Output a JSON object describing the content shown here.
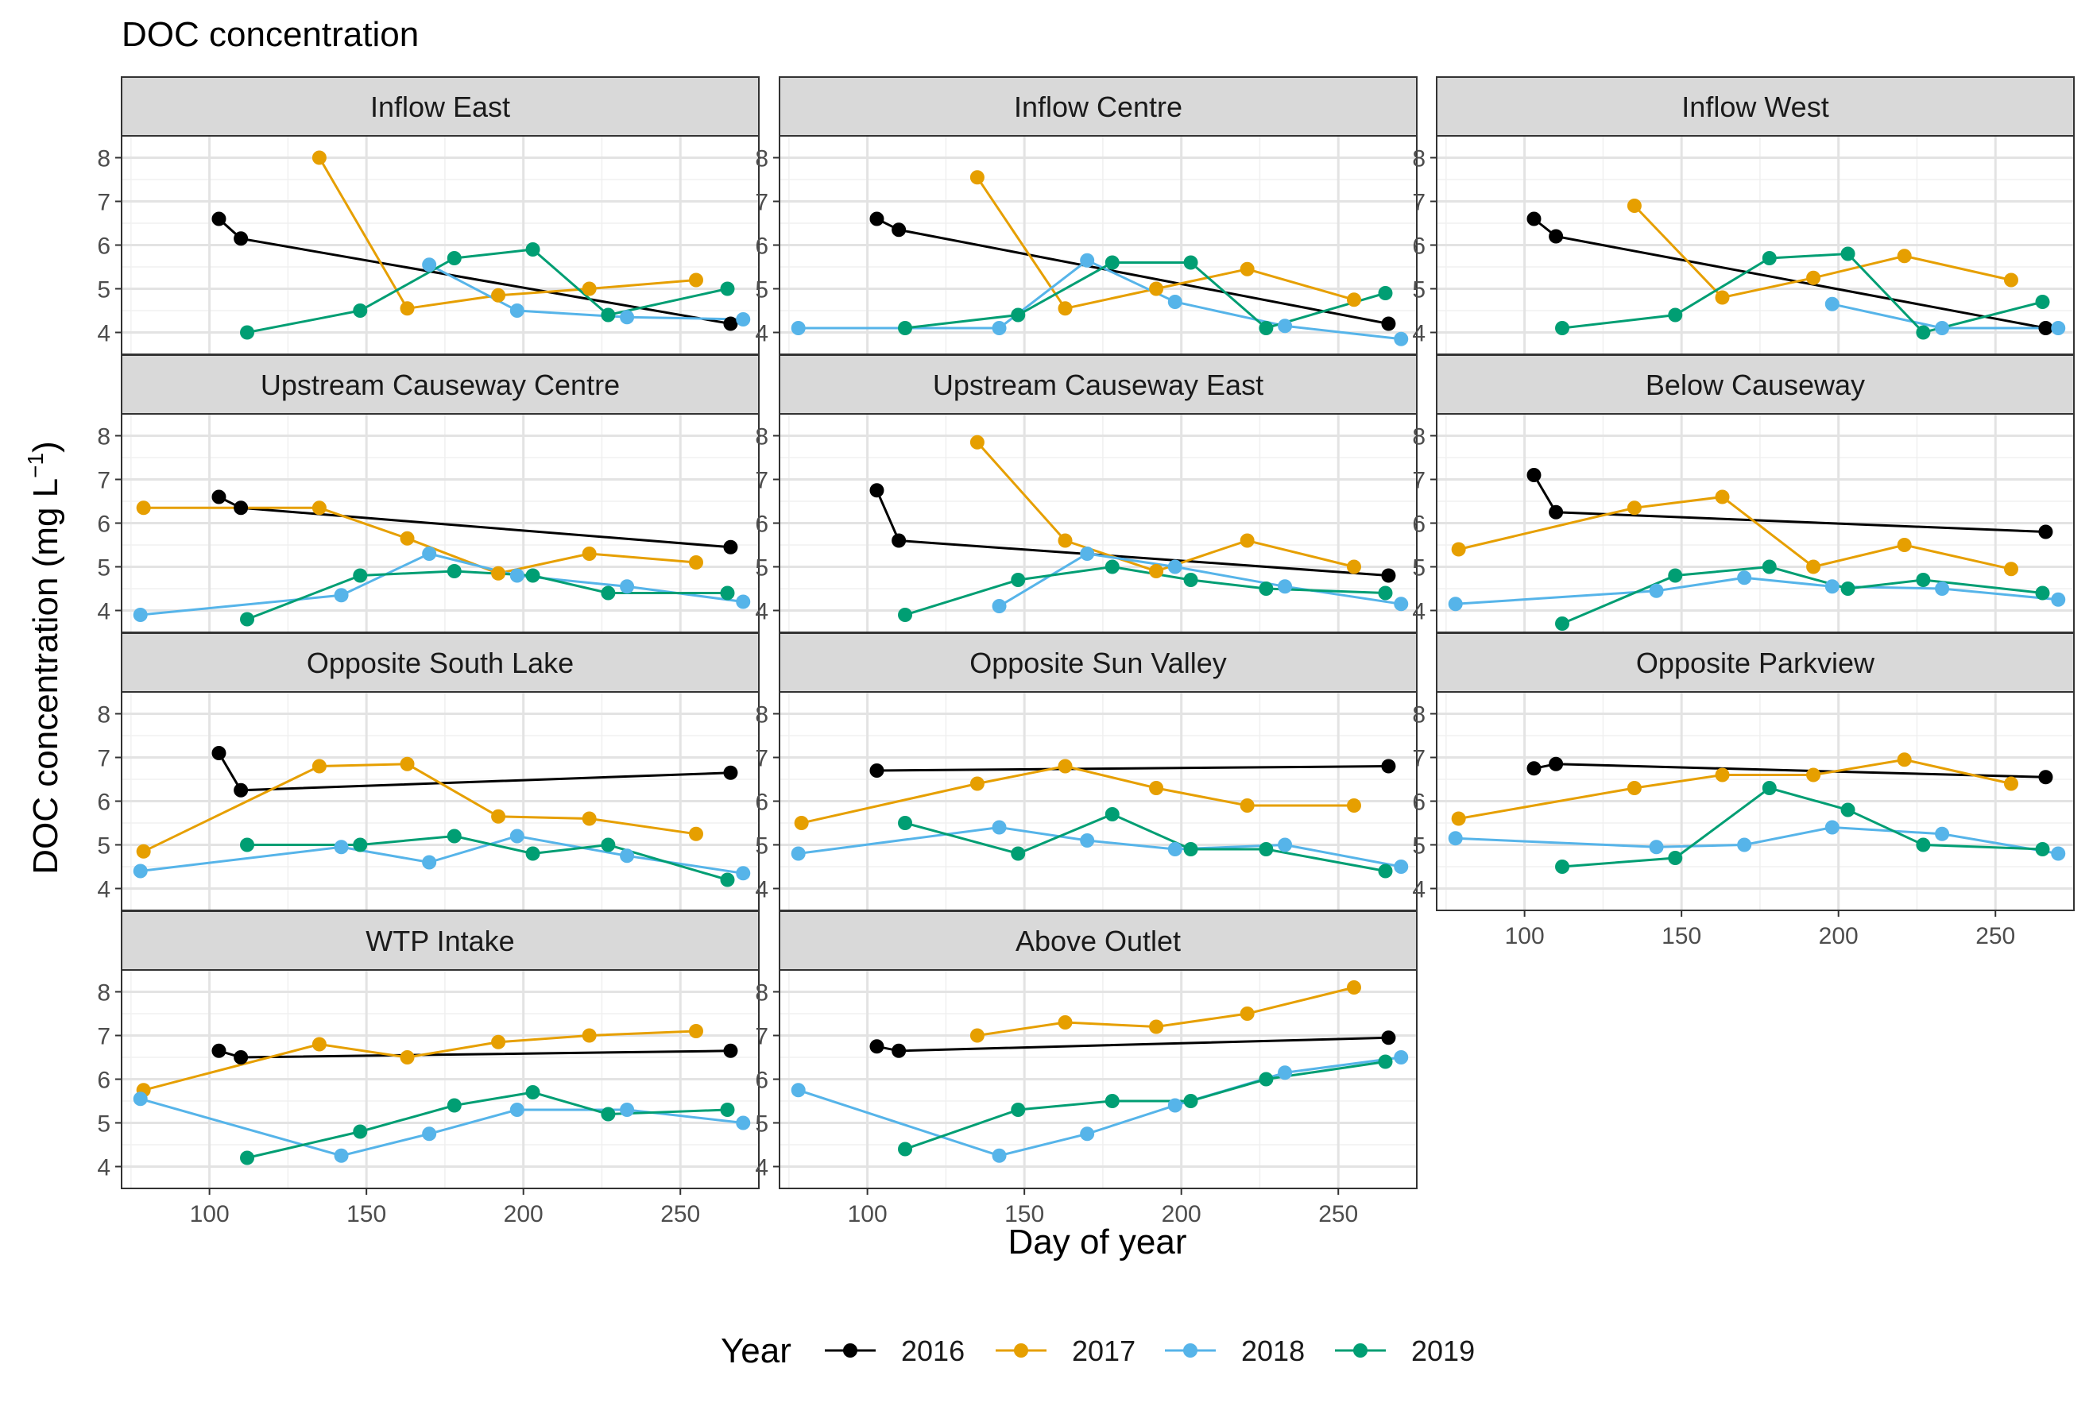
{
  "chart_data": {
    "type": "line",
    "title": "DOC concentration",
    "xlabel": "Day of year",
    "ylabel_main": "DOC concentration (mg L",
    "ylabel_sup": "−1",
    "ylabel_end": ")",
    "xlim": [
      72,
      275
    ],
    "ylim": [
      3.5,
      8.5
    ],
    "xticks": [
      100,
      150,
      200,
      250
    ],
    "yticks": [
      4,
      5,
      6,
      7,
      8
    ],
    "grid": true,
    "legend": {
      "title": "Year",
      "position": "bottom",
      "entries": [
        {
          "name": "2016",
          "color": "#000000"
        },
        {
          "name": "2017",
          "color": "#E69F00"
        },
        {
          "name": "2018",
          "color": "#56B4E9"
        },
        {
          "name": "2019",
          "color": "#009E73"
        }
      ]
    },
    "panels": [
      {
        "name": "Inflow East",
        "series": [
          {
            "name": "2016",
            "x": [
              103,
              110,
              266
            ],
            "y": [
              6.6,
              6.15,
              4.2
            ]
          },
          {
            "name": "2017",
            "x": [
              135,
              163,
              192,
              221,
              255
            ],
            "y": [
              8.0,
              4.55,
              4.85,
              5.0,
              5.2
            ]
          },
          {
            "name": "2018",
            "x": [
              170,
              198,
              233,
              270
            ],
            "y": [
              5.55,
              4.5,
              4.35,
              4.3
            ]
          },
          {
            "name": "2019",
            "x": [
              112,
              148,
              178,
              203,
              227,
              265
            ],
            "y": [
              4.0,
              4.5,
              5.7,
              5.9,
              4.4,
              5.0
            ]
          }
        ]
      },
      {
        "name": "Inflow Centre",
        "series": [
          {
            "name": "2016",
            "x": [
              103,
              110,
              266
            ],
            "y": [
              6.6,
              6.35,
              4.2
            ]
          },
          {
            "name": "2017",
            "x": [
              135,
              163,
              192,
              221,
              255
            ],
            "y": [
              7.55,
              4.55,
              5.0,
              5.45,
              4.75
            ]
          },
          {
            "name": "2018",
            "x": [
              78,
              142,
              170,
              198,
              233,
              270
            ],
            "y": [
              4.1,
              4.1,
              5.65,
              4.7,
              4.15,
              3.85
            ]
          },
          {
            "name": "2019",
            "x": [
              112,
              148,
              178,
              203,
              227,
              265
            ],
            "y": [
              4.1,
              4.4,
              5.6,
              5.6,
              4.1,
              4.9
            ]
          }
        ]
      },
      {
        "name": "Inflow West",
        "series": [
          {
            "name": "2016",
            "x": [
              103,
              110,
              266
            ],
            "y": [
              6.6,
              6.2,
              4.1
            ]
          },
          {
            "name": "2017",
            "x": [
              135,
              163,
              192,
              221,
              255
            ],
            "y": [
              6.9,
              4.8,
              5.25,
              5.75,
              5.2
            ]
          },
          {
            "name": "2018",
            "x": [
              198,
              233,
              270
            ],
            "y": [
              4.65,
              4.1,
              4.1
            ]
          },
          {
            "name": "2019",
            "x": [
              112,
              148,
              178,
              203,
              227,
              265
            ],
            "y": [
              4.1,
              4.4,
              5.7,
              5.8,
              4.0,
              4.7
            ]
          }
        ]
      },
      {
        "name": "Upstream Causeway Centre",
        "series": [
          {
            "name": "2016",
            "x": [
              103,
              110,
              266
            ],
            "y": [
              6.6,
              6.35,
              5.45
            ]
          },
          {
            "name": "2017",
            "x": [
              79,
              135,
              163,
              192,
              221,
              255
            ],
            "y": [
              6.35,
              6.35,
              5.65,
              4.85,
              5.3,
              5.1
            ]
          },
          {
            "name": "2018",
            "x": [
              78,
              142,
              170,
              198,
              233,
              270
            ],
            "y": [
              3.9,
              4.35,
              5.3,
              4.8,
              4.55,
              4.2
            ]
          },
          {
            "name": "2019",
            "x": [
              112,
              148,
              178,
              203,
              227,
              265
            ],
            "y": [
              3.8,
              4.8,
              4.9,
              4.8,
              4.4,
              4.4
            ]
          }
        ]
      },
      {
        "name": "Upstream Causeway East",
        "series": [
          {
            "name": "2016",
            "x": [
              103,
              110,
              266
            ],
            "y": [
              6.75,
              5.6,
              4.8
            ]
          },
          {
            "name": "2017",
            "x": [
              135,
              163,
              192,
              221,
              255
            ],
            "y": [
              7.85,
              5.6,
              4.9,
              5.6,
              5.0
            ]
          },
          {
            "name": "2018",
            "x": [
              142,
              170,
              198,
              233,
              270
            ],
            "y": [
              4.1,
              5.3,
              5.0,
              4.55,
              4.15
            ]
          },
          {
            "name": "2019",
            "x": [
              112,
              148,
              178,
              203,
              227,
              265
            ],
            "y": [
              3.9,
              4.7,
              5.0,
              4.7,
              4.5,
              4.4
            ]
          }
        ]
      },
      {
        "name": "Below Causeway",
        "series": [
          {
            "name": "2016",
            "x": [
              103,
              110,
              266
            ],
            "y": [
              7.1,
              6.25,
              5.8
            ]
          },
          {
            "name": "2017",
            "x": [
              79,
              135,
              163,
              192,
              221,
              255
            ],
            "y": [
              5.4,
              6.35,
              6.6,
              5.0,
              5.5,
              4.95
            ]
          },
          {
            "name": "2018",
            "x": [
              78,
              142,
              170,
              198,
              233,
              270
            ],
            "y": [
              4.15,
              4.45,
              4.75,
              4.55,
              4.5,
              4.25
            ]
          },
          {
            "name": "2019",
            "x": [
              112,
              148,
              178,
              203,
              227,
              265
            ],
            "y": [
              3.7,
              4.8,
              5.0,
              4.5,
              4.7,
              4.4
            ]
          }
        ]
      },
      {
        "name": "Opposite South Lake",
        "series": [
          {
            "name": "2016",
            "x": [
              103,
              110,
              266
            ],
            "y": [
              7.1,
              6.25,
              6.65
            ]
          },
          {
            "name": "2017",
            "x": [
              79,
              135,
              163,
              192,
              221,
              255
            ],
            "y": [
              4.85,
              6.8,
              6.85,
              5.65,
              5.6,
              5.25
            ]
          },
          {
            "name": "2018",
            "x": [
              78,
              142,
              170,
              198,
              233,
              270
            ],
            "y": [
              4.4,
              4.95,
              4.6,
              5.2,
              4.75,
              4.35
            ]
          },
          {
            "name": "2019",
            "x": [
              112,
              148,
              178,
              203,
              227,
              265
            ],
            "y": [
              5.0,
              5.0,
              5.2,
              4.8,
              5.0,
              4.2
            ]
          }
        ]
      },
      {
        "name": "Opposite Sun Valley",
        "series": [
          {
            "name": "2016",
            "x": [
              103,
              266
            ],
            "y": [
              6.7,
              6.8
            ]
          },
          {
            "name": "2017",
            "x": [
              79,
              135,
              163,
              192,
              221,
              255
            ],
            "y": [
              5.5,
              6.4,
              6.8,
              6.3,
              5.9,
              5.9
            ]
          },
          {
            "name": "2018",
            "x": [
              78,
              142,
              170,
              198,
              233,
              270
            ],
            "y": [
              4.8,
              5.4,
              5.1,
              4.9,
              5.0,
              4.5
            ]
          },
          {
            "name": "2019",
            "x": [
              112,
              148,
              178,
              203,
              227,
              265
            ],
            "y": [
              5.5,
              4.8,
              5.7,
              4.9,
              4.9,
              4.4
            ]
          }
        ]
      },
      {
        "name": "Opposite Parkview",
        "series": [
          {
            "name": "2016",
            "x": [
              103,
              110,
              266
            ],
            "y": [
              6.75,
              6.85,
              6.55
            ]
          },
          {
            "name": "2017",
            "x": [
              79,
              135,
              163,
              192,
              221,
              255
            ],
            "y": [
              5.6,
              6.3,
              6.6,
              6.6,
              6.95,
              6.4
            ]
          },
          {
            "name": "2018",
            "x": [
              78,
              142,
              170,
              198,
              233,
              270
            ],
            "y": [
              5.15,
              4.95,
              5.0,
              5.4,
              5.25,
              4.8
            ]
          },
          {
            "name": "2019",
            "x": [
              112,
              148,
              178,
              203,
              227,
              265
            ],
            "y": [
              4.5,
              4.7,
              6.3,
              5.8,
              5.0,
              4.9
            ]
          }
        ]
      },
      {
        "name": "WTP Intake",
        "series": [
          {
            "name": "2016",
            "x": [
              103,
              110,
              266
            ],
            "y": [
              6.65,
              6.5,
              6.65
            ]
          },
          {
            "name": "2017",
            "x": [
              79,
              135,
              163,
              192,
              221,
              255
            ],
            "y": [
              5.75,
              6.8,
              6.5,
              6.85,
              7.0,
              7.1
            ]
          },
          {
            "name": "2018",
            "x": [
              78,
              142,
              170,
              198,
              233,
              270
            ],
            "y": [
              5.55,
              4.25,
              4.75,
              5.3,
              5.3,
              5.0
            ]
          },
          {
            "name": "2019",
            "x": [
              112,
              148,
              178,
              203,
              227,
              265
            ],
            "y": [
              4.2,
              4.8,
              5.4,
              5.7,
              5.2,
              5.3
            ]
          }
        ]
      },
      {
        "name": "Above Outlet",
        "series": [
          {
            "name": "2016",
            "x": [
              103,
              110,
              266
            ],
            "y": [
              6.75,
              6.65,
              6.95
            ]
          },
          {
            "name": "2017",
            "x": [
              135,
              163,
              192,
              221,
              255
            ],
            "y": [
              7.0,
              7.3,
              7.2,
              7.5,
              8.1
            ]
          },
          {
            "name": "2018",
            "x": [
              78,
              142,
              170,
              198,
              233,
              270
            ],
            "y": [
              5.75,
              4.25,
              4.75,
              5.4,
              6.15,
              6.5
            ]
          },
          {
            "name": "2019",
            "x": [
              112,
              148,
              178,
              203,
              227,
              265
            ],
            "y": [
              4.4,
              5.3,
              5.5,
              5.5,
              6.0,
              6.4
            ]
          }
        ]
      }
    ]
  }
}
